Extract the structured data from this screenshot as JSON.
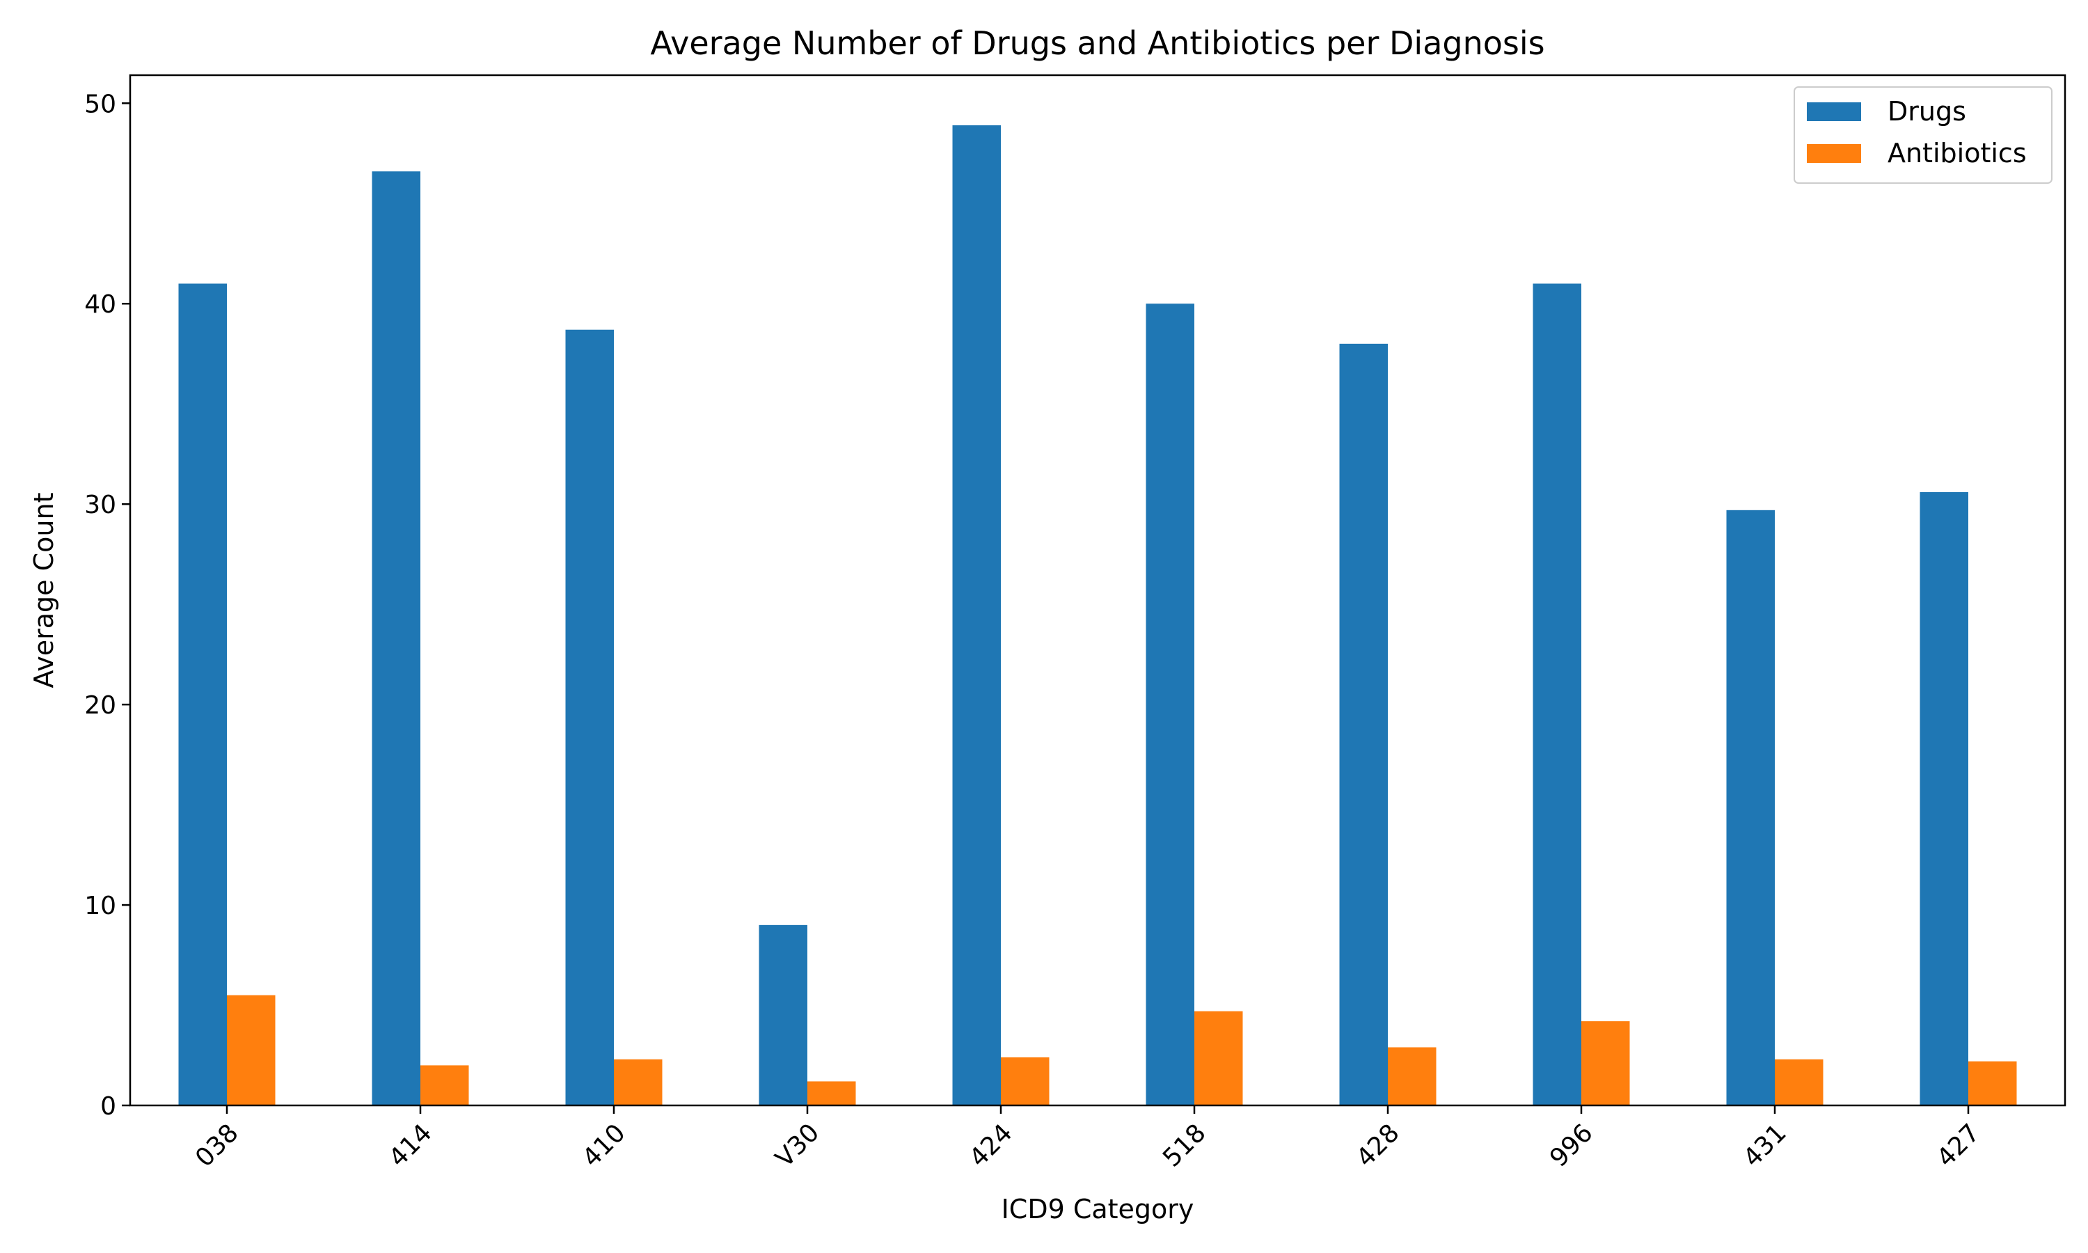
{
  "chart_data": {
    "type": "bar",
    "title": "Average Number of Drugs and Antibiotics per Diagnosis",
    "xlabel": "ICD9 Category",
    "ylabel": "Average Count",
    "categories": [
      "038",
      "414",
      "410",
      "V30",
      "424",
      "518",
      "428",
      "996",
      "431",
      "427"
    ],
    "series": [
      {
        "name": "Drugs",
        "color": "#1f77b4",
        "values": [
          41.0,
          46.6,
          38.7,
          9.0,
          48.9,
          40.0,
          38.0,
          41.0,
          29.7,
          30.6
        ]
      },
      {
        "name": "Antibiotics",
        "color": "#ff7f0e",
        "values": [
          5.5,
          2.0,
          2.3,
          1.2,
          2.4,
          4.7,
          2.9,
          4.2,
          2.3,
          2.2
        ]
      }
    ],
    "ylim": [
      0,
      51.4
    ],
    "yticks": [
      0,
      10,
      20,
      30,
      40,
      50
    ],
    "grid": false,
    "legend_position": "top-right"
  }
}
